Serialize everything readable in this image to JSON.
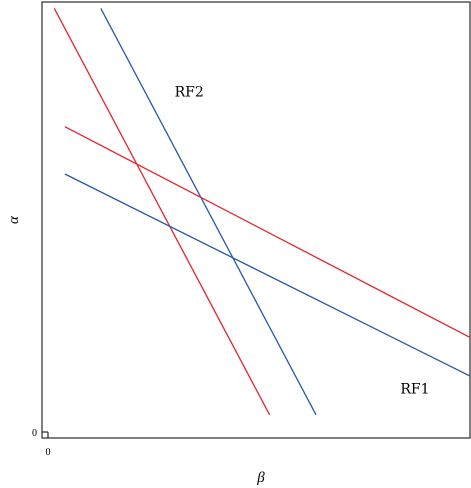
{
  "chart_data": {
    "type": "line",
    "title": "",
    "xlabel": "β",
    "ylabel": "α",
    "xlim": [
      0,
      100
    ],
    "ylim": [
      0,
      100
    ],
    "x_ticks": [
      {
        "value": 0,
        "label": "0"
      }
    ],
    "y_ticks": [
      {
        "value": 0,
        "label": "0"
      }
    ],
    "grid": false,
    "colors": {
      "red": "#e0262b",
      "blue": "#2458a8"
    },
    "series": [
      {
        "color_key": "red",
        "points": [
          [
            1.5,
            98.5
          ],
          [
            52.5,
            4
          ]
        ]
      },
      {
        "color_key": "blue",
        "points": [
          [
            12.5,
            98.5
          ],
          [
            63.5,
            4
          ]
        ]
      },
      {
        "color_key": "red",
        "points": [
          [
            4,
            71
          ],
          [
            100,
            22
          ]
        ]
      },
      {
        "color_key": "blue",
        "points": [
          [
            4,
            60
          ],
          [
            100,
            13
          ]
        ]
      }
    ],
    "annotations": [
      {
        "text": "RF2",
        "x": 30,
        "y": 78
      },
      {
        "text": "RF1",
        "x": 83.5,
        "y": 9
      }
    ]
  }
}
